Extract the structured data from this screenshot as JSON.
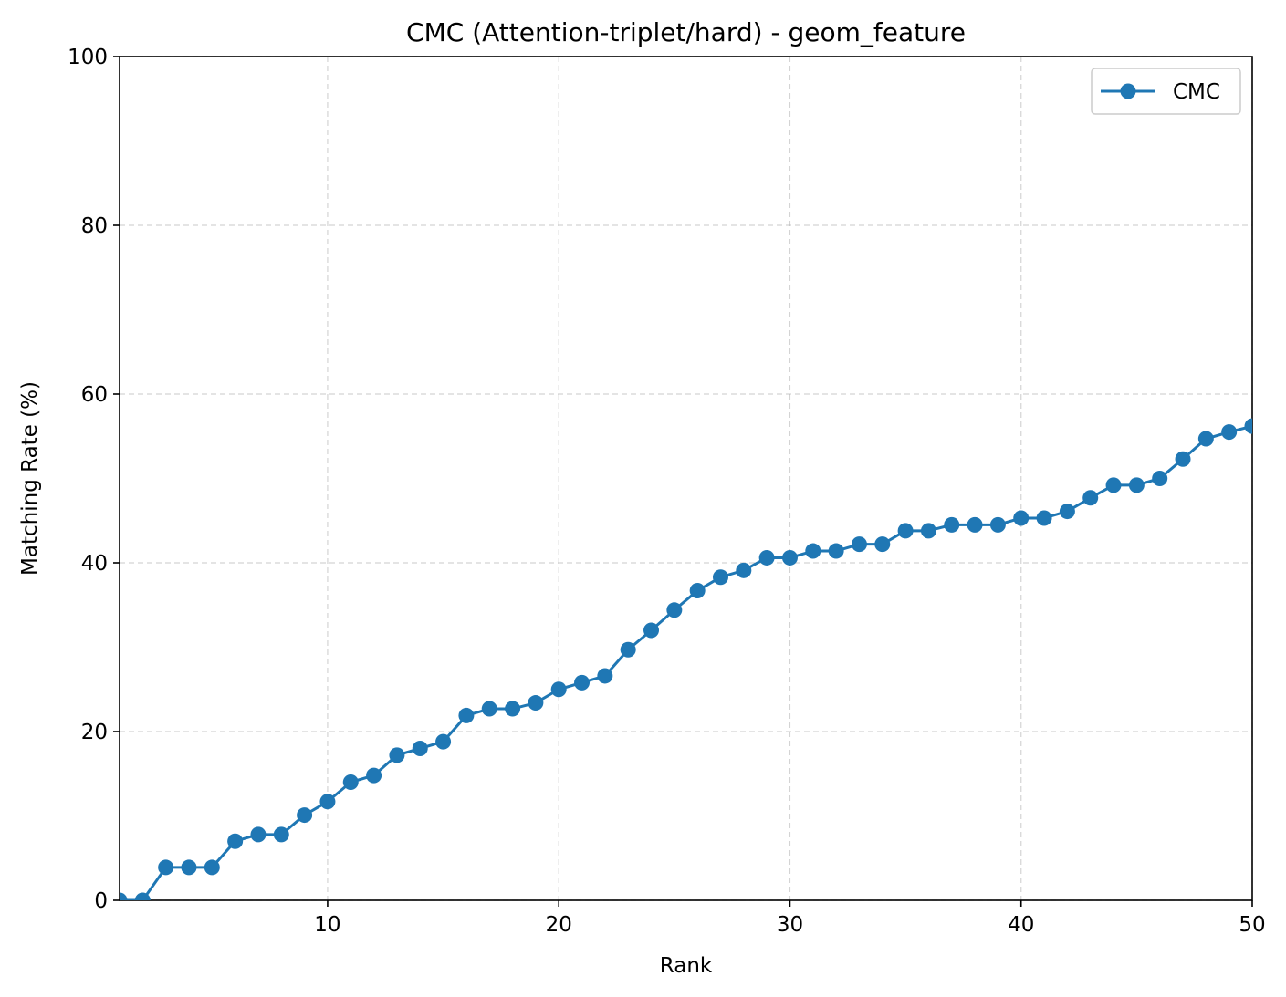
{
  "chart_data": {
    "type": "line",
    "title": "CMC (Attention-triplet/hard) - geom_feature",
    "xlabel": "Rank",
    "ylabel": "Matching Rate (%)",
    "xlim": [
      1,
      50
    ],
    "ylim": [
      0,
      100
    ],
    "xticks": [
      10,
      20,
      30,
      40,
      50
    ],
    "yticks": [
      0,
      20,
      40,
      60,
      80,
      100
    ],
    "grid": true,
    "grid_style": "dashed",
    "legend_position": "top-right",
    "series": [
      {
        "name": "CMC",
        "color": "#1f77b4",
        "marker": "circle",
        "x": [
          1,
          2,
          3,
          4,
          5,
          6,
          7,
          8,
          9,
          10,
          11,
          12,
          13,
          14,
          15,
          16,
          17,
          18,
          19,
          20,
          21,
          22,
          23,
          24,
          25,
          26,
          27,
          28,
          29,
          30,
          31,
          32,
          33,
          34,
          35,
          36,
          37,
          38,
          39,
          40,
          41,
          42,
          43,
          44,
          45,
          46,
          47,
          48,
          49,
          50
        ],
        "values": [
          0.0,
          0.0,
          3.9,
          3.9,
          3.9,
          7.0,
          7.8,
          7.8,
          10.1,
          11.7,
          14.0,
          14.8,
          17.2,
          18.0,
          18.8,
          21.9,
          22.7,
          22.7,
          23.4,
          25.0,
          25.8,
          26.6,
          29.7,
          32.0,
          34.4,
          36.7,
          38.3,
          39.1,
          40.6,
          40.6,
          41.4,
          41.4,
          42.2,
          42.2,
          43.8,
          43.8,
          44.5,
          44.5,
          44.5,
          45.3,
          45.3,
          46.1,
          47.7,
          49.2,
          49.2,
          50.0,
          52.3,
          54.7,
          55.5,
          56.2
        ]
      }
    ]
  }
}
